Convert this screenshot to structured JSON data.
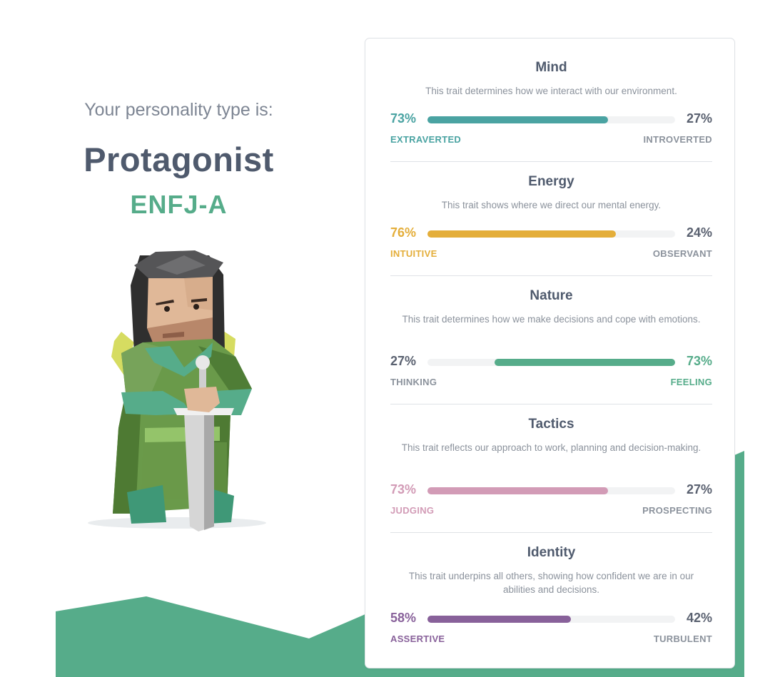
{
  "intro_text": "Your personality type is:",
  "type_name": "Protagonist",
  "type_code": "ENFJ-A",
  "colors": {
    "green": "#56ac8a",
    "teal": "#4aa3a2",
    "yellow": "#e4ae3a",
    "pink": "#d29bb6",
    "purple": "#88619a",
    "text": "#4f5a6d"
  },
  "traits": [
    {
      "title": "Mind",
      "description": "This trait determines how we interact with our environment.",
      "left_percent": "73%",
      "right_percent": "27%",
      "left_label": "EXTRAVERTED",
      "right_label": "INTROVERTED",
      "dominant_side": "left",
      "dominant_value": 0.73,
      "color": "#4aa3a2"
    },
    {
      "title": "Energy",
      "description": "This trait shows where we direct our mental energy.",
      "left_percent": "76%",
      "right_percent": "24%",
      "left_label": "INTUITIVE",
      "right_label": "OBSERVANT",
      "dominant_side": "left",
      "dominant_value": 0.76,
      "color": "#e4ae3a"
    },
    {
      "title": "Nature",
      "description": "This trait determines how we make decisions and cope with emotions.",
      "left_percent": "27%",
      "right_percent": "73%",
      "left_label": "THINKING",
      "right_label": "FEELING",
      "dominant_side": "right",
      "dominant_value": 0.73,
      "color": "#56ac8a"
    },
    {
      "title": "Tactics",
      "description": "This trait reflects our approach to work, planning and decision-making.",
      "left_percent": "73%",
      "right_percent": "27%",
      "left_label": "JUDGING",
      "right_label": "PROSPECTING",
      "dominant_side": "left",
      "dominant_value": 0.73,
      "color": "#d29bb6"
    },
    {
      "title": "Identity",
      "description": "This trait underpins all others, showing how confident we are in our abilities and decisions.",
      "left_percent": "58%",
      "right_percent": "42%",
      "left_label": "ASSERTIVE",
      "right_label": "TURBULENT",
      "dominant_side": "left",
      "dominant_value": 0.58,
      "color": "#88619a"
    }
  ]
}
